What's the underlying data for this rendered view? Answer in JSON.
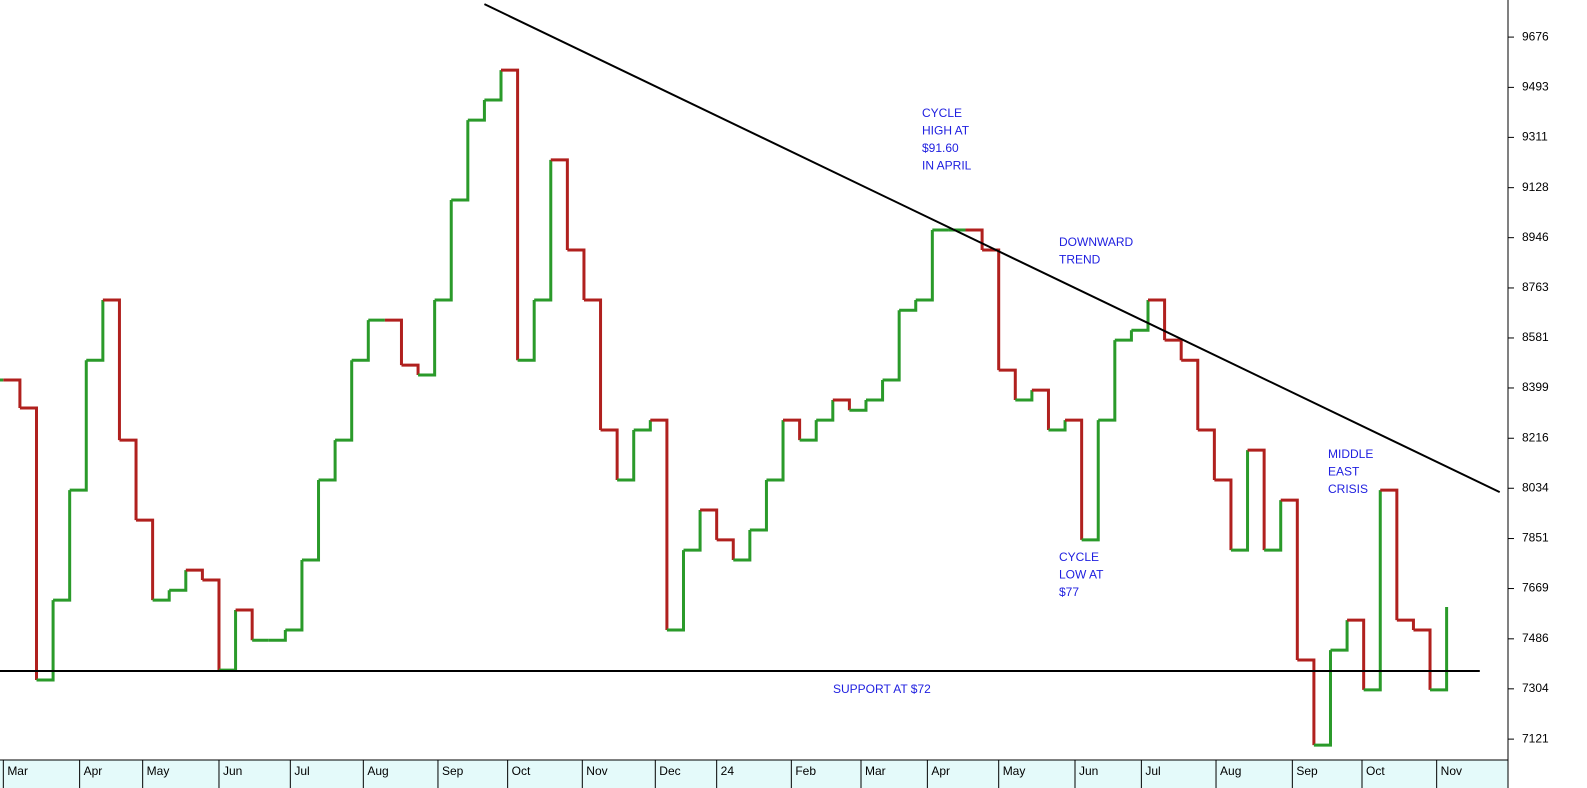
{
  "chart_data": {
    "type": "step-bar",
    "x": [
      0,
      1,
      2,
      3,
      4,
      5,
      6,
      7,
      8,
      9,
      10,
      11,
      12,
      13,
      14,
      15,
      16,
      17,
      18,
      19,
      20,
      21,
      22,
      23,
      24,
      25,
      26,
      27,
      28,
      29,
      30,
      31,
      32,
      33,
      34,
      35,
      36,
      37,
      38,
      39,
      40,
      41,
      42,
      43,
      44,
      45,
      46,
      47,
      48,
      49,
      50,
      51,
      52,
      53,
      54,
      55,
      56,
      57,
      58,
      59,
      60,
      61,
      62,
      63,
      64,
      65,
      66,
      67,
      68,
      69,
      70,
      71,
      72,
      73,
      74,
      75,
      76,
      77,
      78,
      79,
      80,
      81,
      82,
      83,
      84,
      85,
      86,
      87
    ],
    "series": [
      {
        "up_color": "#2a9a2a",
        "down_color": "#b0201e",
        "values": [
          8428,
          8326,
          7336,
          7627,
          8027,
          8500,
          8719,
          8209,
          7918,
          7627,
          7663,
          7736,
          7700,
          7372,
          7591,
          7481,
          7481,
          7518,
          7773,
          8064,
          8209,
          8500,
          8646,
          8646,
          8482,
          8446,
          8719,
          9083,
          9374,
          9447,
          9556,
          8500,
          8719,
          9229,
          8901,
          8719,
          8246,
          8064,
          8246,
          8282,
          7518,
          7809,
          7955,
          7846,
          7773,
          7882,
          8064,
          8282,
          8209,
          8282,
          8355,
          8318,
          8355,
          8428,
          8682,
          8719,
          8974,
          8974,
          8974,
          8901,
          8464,
          8355,
          8391,
          8246,
          8282,
          7846,
          8282,
          8573,
          8609,
          8719,
          8573,
          8500,
          8246,
          8064,
          7809,
          8173,
          7809,
          7991,
          7409,
          7099,
          7445,
          7554,
          7300,
          8027,
          7554,
          7518,
          7300,
          7602
        ]
      }
    ],
    "xlim": [
      -0.2,
      90.7
    ],
    "ylim": [
      7045,
      9811
    ],
    "xticks": [
      {
        "value": 0,
        "label": "Mar"
      },
      {
        "value": 4.6,
        "label": "Apr"
      },
      {
        "value": 8.4,
        "label": "May"
      },
      {
        "value": 13,
        "label": "Jun"
      },
      {
        "value": 17.3,
        "label": "Jul"
      },
      {
        "value": 21.7,
        "label": "Aug"
      },
      {
        "value": 26.2,
        "label": "Sep"
      },
      {
        "value": 30.4,
        "label": "Oct"
      },
      {
        "value": 34.9,
        "label": "Nov"
      },
      {
        "value": 39.3,
        "label": "Dec"
      },
      {
        "value": 43,
        "label": "24"
      },
      {
        "value": 47.5,
        "label": "Feb"
      },
      {
        "value": 51.7,
        "label": "Mar"
      },
      {
        "value": 55.7,
        "label": "Apr"
      },
      {
        "value": 60,
        "label": "May"
      },
      {
        "value": 64.6,
        "label": "Jun"
      },
      {
        "value": 68.6,
        "label": "Jul"
      },
      {
        "value": 73.1,
        "label": "Aug"
      },
      {
        "value": 77.7,
        "label": "Sep"
      },
      {
        "value": 81.9,
        "label": "Oct"
      },
      {
        "value": 86.4,
        "label": "Nov"
      }
    ],
    "yticks": [
      7121,
      7304,
      7486,
      7669,
      7851,
      8034,
      8216,
      8399,
      8581,
      8763,
      8946,
      9128,
      9311,
      9493,
      9676
    ],
    "trend_lines": [
      {
        "color": "#000000",
        "x": [
          29.0,
          90.2
        ],
        "values": [
          9796,
          8020
        ]
      },
      {
        "color": "#000000",
        "x": [
          -0.2,
          89.0
        ],
        "values": [
          7369,
          7369
        ]
      }
    ],
    "annotations": [
      {
        "lines": [
          "CYCLE",
          "HIGH AT",
          "$91.60",
          "IN APRIL"
        ]
      },
      {
        "lines": [
          "DOWNWARD",
          "TREND"
        ]
      },
      {
        "lines": [
          "CYCLE",
          "LOW AT",
          "$77"
        ]
      },
      {
        "lines": [
          "MIDDLE",
          "EAST",
          "CRISIS"
        ]
      },
      {
        "lines": [
          "SUPPORT AT $72"
        ]
      }
    ],
    "annotation_color": "#2020e0"
  }
}
